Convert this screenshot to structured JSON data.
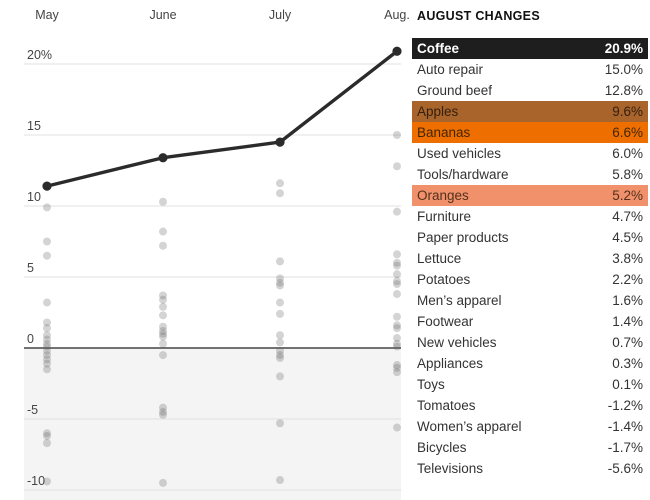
{
  "panel": {
    "title": "AUGUST CHANGES",
    "items": [
      {
        "label": "Coffee",
        "value": "20.9%",
        "highlight": "black"
      },
      {
        "label": "Auto repair",
        "value": "15.0%",
        "highlight": null
      },
      {
        "label": "Ground beef",
        "value": "12.8%",
        "highlight": null
      },
      {
        "label": "Apples",
        "value": "9.6%",
        "highlight": "brown"
      },
      {
        "label": "Bananas",
        "value": "6.6%",
        "highlight": "orange"
      },
      {
        "label": "Used vehicles",
        "value": "6.0%",
        "highlight": null
      },
      {
        "label": "Tools/hardware",
        "value": "5.8%",
        "highlight": null
      },
      {
        "label": "Oranges",
        "value": "5.2%",
        "highlight": "lightorange"
      },
      {
        "label": "Furniture",
        "value": "4.7%",
        "highlight": null
      },
      {
        "label": "Paper products",
        "value": "4.5%",
        "highlight": null
      },
      {
        "label": "Lettuce",
        "value": "3.8%",
        "highlight": null
      },
      {
        "label": "Potatoes",
        "value": "2.2%",
        "highlight": null
      },
      {
        "label": "Men’s apparel",
        "value": "1.6%",
        "highlight": null
      },
      {
        "label": "Footwear",
        "value": "1.4%",
        "highlight": null
      },
      {
        "label": "New vehicles",
        "value": "0.7%",
        "highlight": null
      },
      {
        "label": "Appliances",
        "value": "0.3%",
        "highlight": null
      },
      {
        "label": "Toys",
        "value": "0.1%",
        "highlight": null
      },
      {
        "label": "Tomatoes",
        "value": "-1.2%",
        "highlight": null
      },
      {
        "label": "Women’s apparel",
        "value": "-1.4%",
        "highlight": null
      },
      {
        "label": "Bicycles",
        "value": "-1.7%",
        "highlight": null
      },
      {
        "label": "Televisions",
        "value": "-5.6%",
        "highlight": null
      }
    ]
  },
  "chart_data": {
    "type": "line",
    "categories": [
      "May",
      "June",
      "July",
      "Aug."
    ],
    "series": [
      {
        "name": "Coffee",
        "values": [
          11.4,
          13.4,
          14.5,
          20.9
        ]
      }
    ],
    "scatter_by_month": [
      [
        9.9,
        7.5,
        6.5,
        3.2,
        1.8,
        1.4,
        0.9,
        0.6,
        0.3,
        0.1,
        -0.2,
        -0.5,
        -0.8,
        -1.1,
        -1.5,
        -6.0,
        -6.2,
        -6.7,
        -9.4
      ],
      [
        10.3,
        8.2,
        7.2,
        3.7,
        3.4,
        2.9,
        2.3,
        1.5,
        1.2,
        1.0,
        0.8,
        0.3,
        -0.5,
        -4.2,
        -4.5,
        -4.7,
        -9.5
      ],
      [
        11.6,
        10.9,
        6.1,
        4.9,
        4.6,
        4.4,
        3.2,
        2.4,
        0.9,
        0.4,
        -0.2,
        -0.5,
        -0.7,
        -2.0,
        -5.3,
        -9.3
      ],
      [
        15.0,
        12.8,
        9.6,
        6.6,
        6.0,
        5.8,
        5.2,
        4.7,
        4.5,
        3.8,
        2.2,
        1.6,
        1.4,
        0.7,
        0.3,
        0.1,
        -1.2,
        -1.4,
        -1.7,
        -5.6
      ]
    ],
    "yticks": [
      20,
      15,
      10,
      5,
      0,
      -5,
      -10
    ],
    "ytick_labels": [
      "20%",
      "15",
      "10",
      "5",
      "0",
      "-5",
      "-10"
    ],
    "ylim": [
      -10.7,
      22.5
    ],
    "grid": true,
    "zero_line": true,
    "shaded_below_zero": true,
    "legend_position": "none"
  },
  "colors": {
    "highlight_black": "#1e1e1e",
    "highlight_brown": "#a9642c",
    "highlight_orange": "#ee6f00",
    "highlight_lightorange": "#f0916c",
    "line": "#2b2b2b",
    "scatter_dot": "#666666",
    "gridline": "#e0e0e0",
    "zero_line": "#454545",
    "shade": "#f4f4f4",
    "axis_text": "#454545"
  }
}
